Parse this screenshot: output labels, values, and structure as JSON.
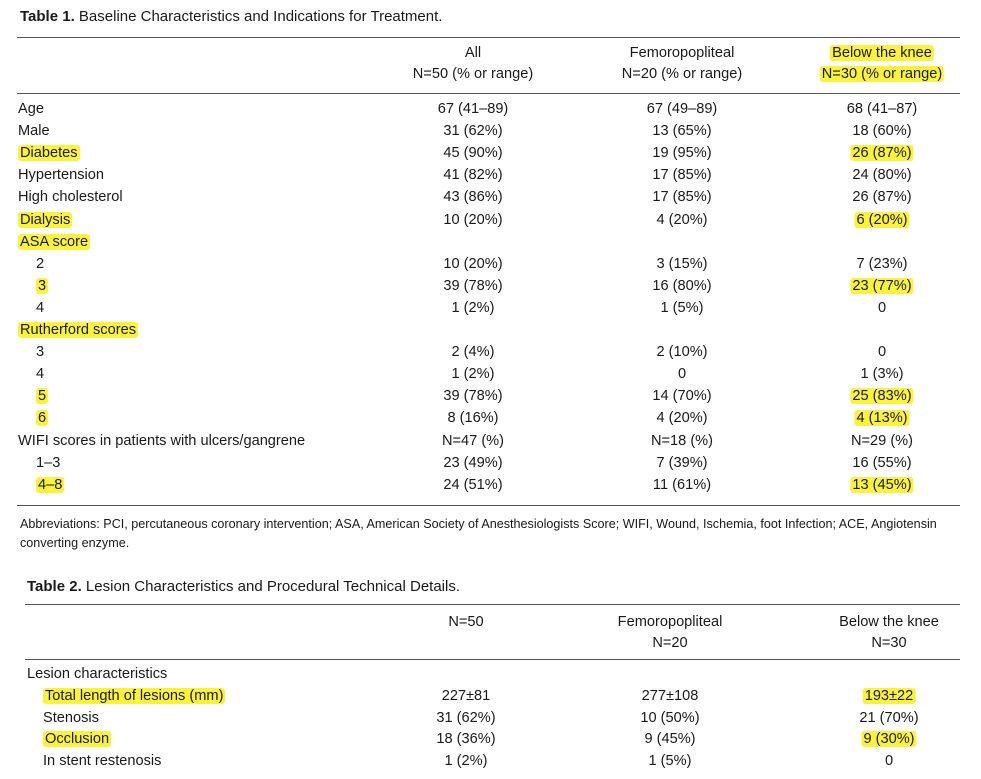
{
  "table1": {
    "caption_label": "Table 1.",
    "caption_text": "Baseline Characteristics and Indications for Treatment.",
    "columns": [
      {
        "line1": "All",
        "line2": "N=50 (% or range)",
        "highlight": false
      },
      {
        "line1": "Femoropopliteal",
        "line2": "N=20 (% or range)",
        "highlight": false
      },
      {
        "line1": "Below the knee",
        "line2": "N=30 (% or range)",
        "highlight": true
      }
    ],
    "rows": [
      {
        "label": "Age",
        "indent": 0,
        "label_hl": false,
        "values": [
          "67 (41–89)",
          "67 (49–89)",
          "68 (41–87)"
        ],
        "last_hl": false
      },
      {
        "label": "Male",
        "indent": 0,
        "label_hl": false,
        "values": [
          "31 (62%)",
          "13 (65%)",
          "18 (60%)"
        ],
        "last_hl": false
      },
      {
        "label": "Diabetes",
        "indent": 0,
        "label_hl": true,
        "values": [
          "45 (90%)",
          "19 (95%)",
          "26 (87%)"
        ],
        "last_hl": true
      },
      {
        "label": "Hypertension",
        "indent": 0,
        "label_hl": false,
        "values": [
          "41 (82%)",
          "17 (85%)",
          "24 (80%)"
        ],
        "last_hl": false
      },
      {
        "label": "High cholesterol",
        "indent": 0,
        "label_hl": false,
        "values": [
          "43 (86%)",
          "17 (85%)",
          "26 (87%)"
        ],
        "last_hl": false
      },
      {
        "label": "Dialysis",
        "indent": 0,
        "label_hl": true,
        "values": [
          "10 (20%)",
          "4 (20%)",
          "6 (20%)"
        ],
        "last_hl": true
      },
      {
        "label": "ASA score",
        "indent": 0,
        "label_hl": true,
        "values": [
          "",
          "",
          ""
        ],
        "last_hl": false
      },
      {
        "label": "2",
        "indent": 1,
        "label_hl": false,
        "values": [
          "10 (20%)",
          "3 (15%)",
          "7 (23%)"
        ],
        "last_hl": false
      },
      {
        "label": "3",
        "indent": 1,
        "label_hl": true,
        "values": [
          "39 (78%)",
          "16 (80%)",
          "23 (77%)"
        ],
        "last_hl": true
      },
      {
        "label": "4",
        "indent": 1,
        "label_hl": false,
        "values": [
          "1 (2%)",
          "1 (5%)",
          "0"
        ],
        "last_hl": false
      },
      {
        "label": "Rutherford scores",
        "indent": 0,
        "label_hl": true,
        "values": [
          "",
          "",
          ""
        ],
        "last_hl": false
      },
      {
        "label": "3",
        "indent": 1,
        "label_hl": false,
        "values": [
          "2 (4%)",
          "2 (10%)",
          "0"
        ],
        "last_hl": false
      },
      {
        "label": "4",
        "indent": 1,
        "label_hl": false,
        "values": [
          "1 (2%)",
          "0",
          "1 (3%)"
        ],
        "last_hl": false
      },
      {
        "label": "5",
        "indent": 1,
        "label_hl": true,
        "values": [
          "39 (78%)",
          "14 (70%)",
          "25 (83%)"
        ],
        "last_hl": true
      },
      {
        "label": "6",
        "indent": 1,
        "label_hl": true,
        "values": [
          "8 (16%)",
          "4 (20%)",
          "4 (13%)"
        ],
        "last_hl": true
      },
      {
        "label": "WIFI scores in patients with ulcers/gangrene",
        "indent": 0,
        "label_hl": false,
        "values": [
          "N=47 (%)",
          "N=18 (%)",
          "N=29 (%)"
        ],
        "last_hl": false
      },
      {
        "label": "1–3",
        "indent": 1,
        "label_hl": false,
        "values": [
          "23 (49%)",
          "7 (39%)",
          "16 (55%)"
        ],
        "last_hl": false
      },
      {
        "label": "4–8",
        "indent": 1,
        "label_hl": true,
        "values": [
          "24 (51%)",
          "11 (61%)",
          "13 (45%)"
        ],
        "last_hl": true
      }
    ],
    "footnote": "Abbreviations: PCI, percutaneous coronary intervention; ASA, American Society of Anesthesiologists Score; WIFI, Wound, Ischemia, foot Infection; ACE, Angiotensin converting enzyme."
  },
  "table2": {
    "caption_label": "Table 2.",
    "caption_text": "Lesion Characteristics and Procedural Technical Details.",
    "columns": [
      {
        "line1": "",
        "line2": "N=50",
        "highlight": false
      },
      {
        "line1": "Femoropopliteal",
        "line2": "N=20",
        "highlight": false
      },
      {
        "line1": "Below the knee",
        "line2": "N=30",
        "highlight": false
      }
    ],
    "rows": [
      {
        "label": "Lesion characteristics",
        "indent": 0,
        "label_hl": false,
        "values": [
          "",
          "",
          ""
        ],
        "last_hl": false
      },
      {
        "label": "Total length of lesions (mm)",
        "indent": 1,
        "label_hl": true,
        "values": [
          "227±81",
          "277±108",
          "193±22"
        ],
        "last_hl": true
      },
      {
        "label": "Stenosis",
        "indent": 1,
        "label_hl": false,
        "values": [
          "31 (62%)",
          "10 (50%)",
          "21 (70%)"
        ],
        "last_hl": false
      },
      {
        "label": "Occlusion",
        "indent": 1,
        "label_hl": true,
        "values": [
          "18 (36%)",
          "9 (45%)",
          "9 (30%)"
        ],
        "last_hl": true
      },
      {
        "label": "In stent restenosis",
        "indent": 1,
        "label_hl": false,
        "values": [
          "1 (2%)",
          "1 (5%)",
          "0"
        ],
        "last_hl": false
      }
    ]
  },
  "colors": {
    "highlight": "#fbf23a",
    "text": "#1a1a1a",
    "rule": "#555555"
  }
}
